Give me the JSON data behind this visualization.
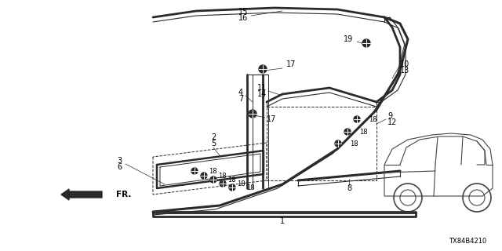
{
  "bg_color": "#ffffff",
  "diagram_id": "TX84B4210",
  "line_color": "#2a2a2a",
  "label_color": "#000000",
  "font_size": 7.0
}
